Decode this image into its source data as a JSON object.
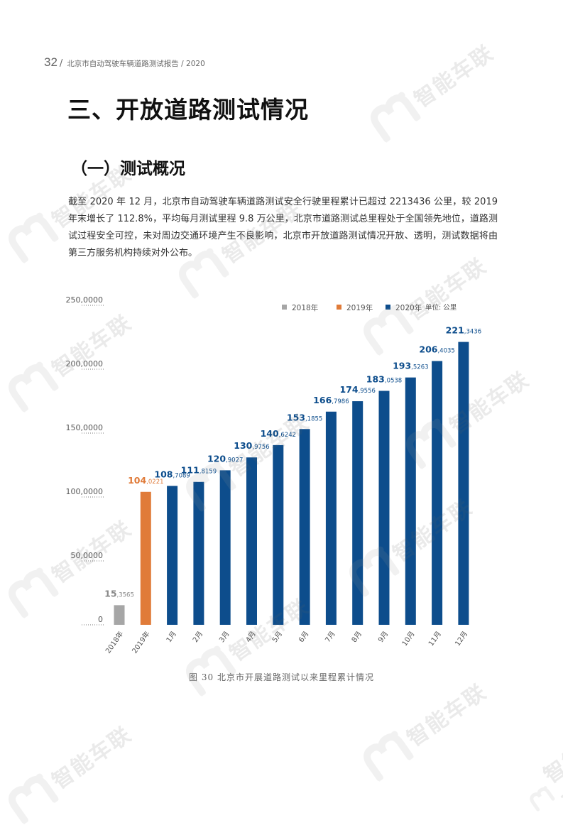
{
  "header": {
    "page_number": "32",
    "separator": "/",
    "title": "北京市自动驾驶车辆道路测试报告 / 2020"
  },
  "section_title": "三、开放道路测试情况",
  "subsection_title": "（一）测试概况",
  "paragraph": "截至 2020 年 12 月，北京市自动驾驶车辆道路测试安全行驶里程累计已超过 2213436 公里，较 2019 年末增长了 112.8%，平均每月测试里程 9.8 万公里，北京市道路测试总里程处于全国领先地位，道路测试过程安全可控，未对周边交通环境产生不良影响，北京市开放道路测试情况开放、透明，测试数据将由第三方服务机构持续对外公布。",
  "watermark": {
    "text": "智能车联",
    "logo_letter": "m",
    "color": "#9a9a9a"
  },
  "chart_data": {
    "type": "bar",
    "title": "",
    "xlabel": "",
    "ylabel": "",
    "ylim": [
      0,
      2500000
    ],
    "y_ticks": [
      0,
      500000,
      1000000,
      1500000,
      2000000,
      2500000
    ],
    "y_tick_labels": [
      "0",
      "50,0000",
      "100,0000",
      "150,0000",
      "200,0000",
      "250,0000"
    ],
    "unit_label": "单位: 公里",
    "legend": [
      {
        "label": "2018年",
        "color": "#a6a6a6"
      },
      {
        "label": "2019年",
        "color": "#e07b39"
      },
      {
        "label": "2020年",
        "color": "#0d4d8c"
      }
    ],
    "legend_position": "top-right",
    "grid": false,
    "categories": [
      "2018年",
      "2019年",
      "1月",
      "2月",
      "3月",
      "4月",
      "5月",
      "6月",
      "7月",
      "8月",
      "9月",
      "10月",
      "11月",
      "12月"
    ],
    "values": [
      153565,
      1040221,
      1087089,
      1118159,
      1209027,
      1309756,
      1406242,
      1531855,
      1667986,
      1749556,
      1830538,
      1935263,
      2064035,
      2213436
    ],
    "label_major": [
      "15",
      "104",
      "108",
      "111",
      "120",
      "130",
      "140",
      "153",
      "166",
      "174",
      "183",
      "193",
      "206",
      "221"
    ],
    "label_minor": [
      "3565",
      "0221",
      "7089",
      "8159",
      "9027",
      "9756",
      "6242",
      "1855",
      "7986",
      "9556",
      "0538",
      "5263",
      "4035",
      "3436"
    ],
    "bar_series": [
      "2018年",
      "2019年",
      "2020年",
      "2020年",
      "2020年",
      "2020年",
      "2020年",
      "2020年",
      "2020年",
      "2020年",
      "2020年",
      "2020年",
      "2020年",
      "2020年"
    ],
    "caption": "图 30  北京市开展道路测试以来里程累计情况"
  }
}
